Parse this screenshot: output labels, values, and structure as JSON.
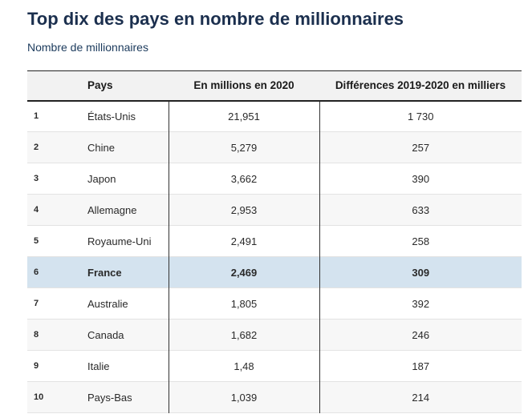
{
  "title": "Top dix des pays en nombre de millionnaires",
  "subtitle": "Nombre de millionnaires",
  "colors": {
    "title": "#1b2f4e",
    "header_bg": "#f2f2f2",
    "row_alt": "#f7f7f7",
    "highlight_row": "#d4e3ef"
  },
  "chart_data": {
    "type": "table",
    "title": "Top dix des pays en nombre de millionnaires",
    "subtitle": "Nombre de millionnaires",
    "columns": [
      "",
      "Pays",
      "En millions en 2020",
      "Différences 2019-2020 en milliers"
    ],
    "highlighted_row": 6,
    "rows": [
      {
        "rank": "1",
        "country": "États-Unis",
        "millions_2020": "21,951",
        "diff_2019_2020": "1 730"
      },
      {
        "rank": "2",
        "country": "Chine",
        "millions_2020": "5,279",
        "diff_2019_2020": "257"
      },
      {
        "rank": "3",
        "country": "Japon",
        "millions_2020": "3,662",
        "diff_2019_2020": "390"
      },
      {
        "rank": "4",
        "country": "Allemagne",
        "millions_2020": "2,953",
        "diff_2019_2020": "633"
      },
      {
        "rank": "5",
        "country": "Royaume-Uni",
        "millions_2020": "2,491",
        "diff_2019_2020": "258"
      },
      {
        "rank": "6",
        "country": "France",
        "millions_2020": "2,469",
        "diff_2019_2020": "309"
      },
      {
        "rank": "7",
        "country": "Australie",
        "millions_2020": "1,805",
        "diff_2019_2020": "392"
      },
      {
        "rank": "8",
        "country": "Canada",
        "millions_2020": "1,682",
        "diff_2019_2020": "246"
      },
      {
        "rank": "9",
        "country": "Italie",
        "millions_2020": "1,48",
        "diff_2019_2020": "187"
      },
      {
        "rank": "10",
        "country": "Pays-Bas",
        "millions_2020": "1,039",
        "diff_2019_2020": "214"
      }
    ]
  }
}
